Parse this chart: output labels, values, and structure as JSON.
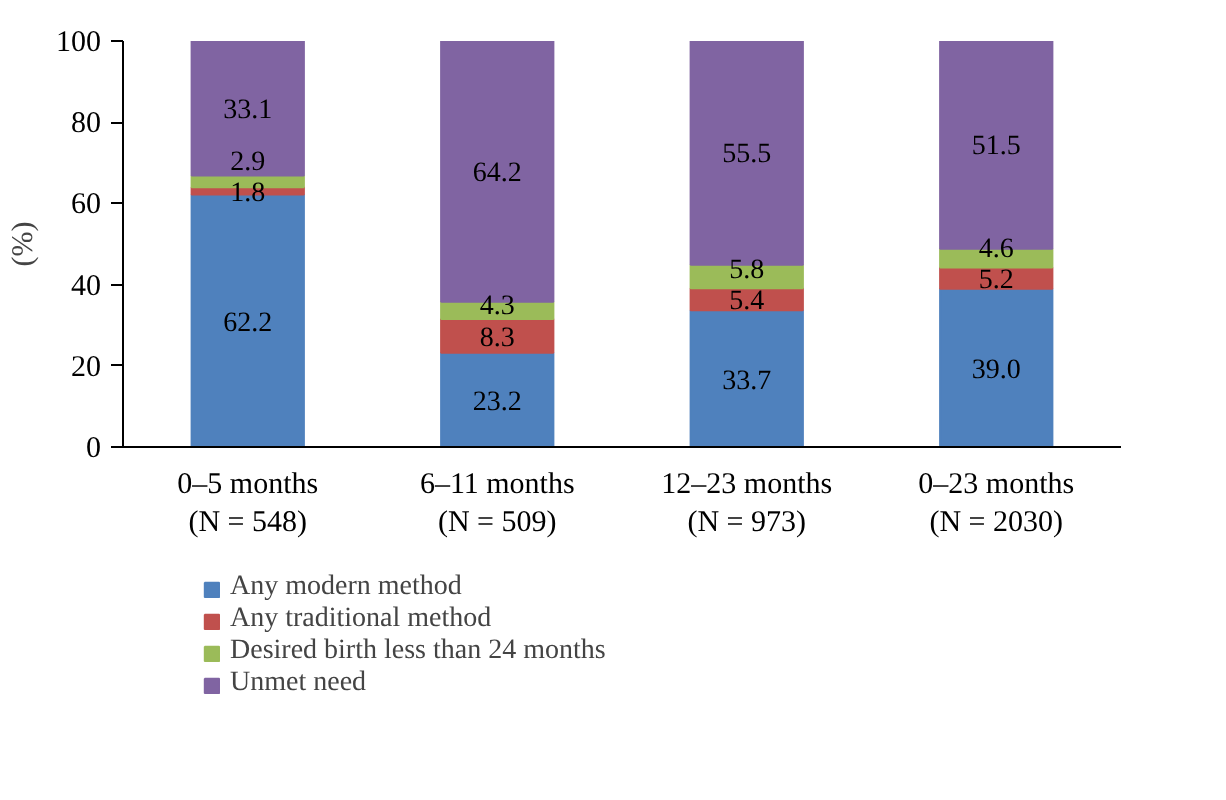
{
  "chart_data": {
    "type": "bar",
    "stacked": true,
    "ylabel": "(%)",
    "categories": [
      "0–5 months\n(N = 548)",
      "6–11 months\n(N = 509)",
      "12–23 months\n(N = 973)",
      "0–23 months\n(N = 2030)"
    ],
    "series": [
      {
        "name": "Any modern method",
        "color": "#4f81bd",
        "values": [
          62.2,
          23.2,
          33.7,
          39.0
        ],
        "value_labels": [
          "62.2",
          "23.2",
          "33.7",
          "39.0"
        ]
      },
      {
        "name": "Any traditional method",
        "color": "#c0504d",
        "values": [
          1.8,
          8.3,
          5.4,
          5.2
        ],
        "value_labels": [
          "1.8",
          "8.3",
          "5.4",
          "5.2"
        ]
      },
      {
        "name": "Desired birth less than 24 months",
        "color": "#9bbb59",
        "values": [
          2.9,
          4.3,
          5.8,
          4.6
        ],
        "value_labels": [
          "2.9",
          "4.3",
          "5.8",
          "4.6"
        ]
      },
      {
        "name": "Unmet need",
        "color": "#8064a2",
        "values": [
          33.1,
          64.2,
          55.5,
          51.5
        ],
        "value_labels": [
          "33.1",
          "64.2",
          "55.5",
          "51.5"
        ]
      }
    ],
    "ylim": [
      0,
      100
    ],
    "yticks": [
      0,
      20,
      40,
      60,
      80,
      100
    ],
    "grid": false,
    "legend": "bottom"
  }
}
